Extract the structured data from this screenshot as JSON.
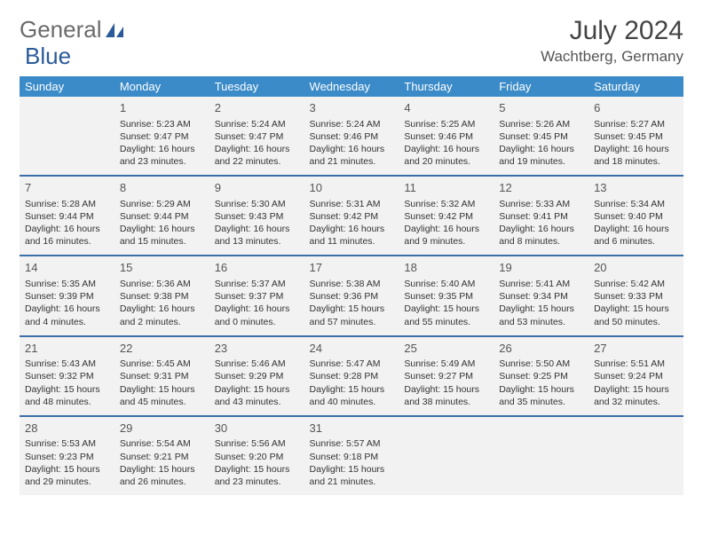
{
  "logo": {
    "word1": "General",
    "word2": "Blue",
    "color1": "#6b6b6b",
    "color2": "#2a5a9a",
    "icon_color": "#2a5a9a"
  },
  "title": "July 2024",
  "location": "Wachtberg, Germany",
  "colors": {
    "header_bg": "#3b8bc8",
    "header_fg": "#ffffff",
    "row_border": "#3b6fa8",
    "cell_bg": "#f2f2f2",
    "text": "#333333"
  },
  "dow": [
    "Sunday",
    "Monday",
    "Tuesday",
    "Wednesday",
    "Thursday",
    "Friday",
    "Saturday"
  ],
  "weeks": [
    [
      null,
      {
        "d": "1",
        "sr": "5:23 AM",
        "ss": "9:47 PM",
        "dl1": "Daylight: 16 hours",
        "dl2": "and 23 minutes."
      },
      {
        "d": "2",
        "sr": "5:24 AM",
        "ss": "9:47 PM",
        "dl1": "Daylight: 16 hours",
        "dl2": "and 22 minutes."
      },
      {
        "d": "3",
        "sr": "5:24 AM",
        "ss": "9:46 PM",
        "dl1": "Daylight: 16 hours",
        "dl2": "and 21 minutes."
      },
      {
        "d": "4",
        "sr": "5:25 AM",
        "ss": "9:46 PM",
        "dl1": "Daylight: 16 hours",
        "dl2": "and 20 minutes."
      },
      {
        "d": "5",
        "sr": "5:26 AM",
        "ss": "9:45 PM",
        "dl1": "Daylight: 16 hours",
        "dl2": "and 19 minutes."
      },
      {
        "d": "6",
        "sr": "5:27 AM",
        "ss": "9:45 PM",
        "dl1": "Daylight: 16 hours",
        "dl2": "and 18 minutes."
      }
    ],
    [
      {
        "d": "7",
        "sr": "5:28 AM",
        "ss": "9:44 PM",
        "dl1": "Daylight: 16 hours",
        "dl2": "and 16 minutes."
      },
      {
        "d": "8",
        "sr": "5:29 AM",
        "ss": "9:44 PM",
        "dl1": "Daylight: 16 hours",
        "dl2": "and 15 minutes."
      },
      {
        "d": "9",
        "sr": "5:30 AM",
        "ss": "9:43 PM",
        "dl1": "Daylight: 16 hours",
        "dl2": "and 13 minutes."
      },
      {
        "d": "10",
        "sr": "5:31 AM",
        "ss": "9:42 PM",
        "dl1": "Daylight: 16 hours",
        "dl2": "and 11 minutes."
      },
      {
        "d": "11",
        "sr": "5:32 AM",
        "ss": "9:42 PM",
        "dl1": "Daylight: 16 hours",
        "dl2": "and 9 minutes."
      },
      {
        "d": "12",
        "sr": "5:33 AM",
        "ss": "9:41 PM",
        "dl1": "Daylight: 16 hours",
        "dl2": "and 8 minutes."
      },
      {
        "d": "13",
        "sr": "5:34 AM",
        "ss": "9:40 PM",
        "dl1": "Daylight: 16 hours",
        "dl2": "and 6 minutes."
      }
    ],
    [
      {
        "d": "14",
        "sr": "5:35 AM",
        "ss": "9:39 PM",
        "dl1": "Daylight: 16 hours",
        "dl2": "and 4 minutes."
      },
      {
        "d": "15",
        "sr": "5:36 AM",
        "ss": "9:38 PM",
        "dl1": "Daylight: 16 hours",
        "dl2": "and 2 minutes."
      },
      {
        "d": "16",
        "sr": "5:37 AM",
        "ss": "9:37 PM",
        "dl1": "Daylight: 16 hours",
        "dl2": "and 0 minutes."
      },
      {
        "d": "17",
        "sr": "5:38 AM",
        "ss": "9:36 PM",
        "dl1": "Daylight: 15 hours",
        "dl2": "and 57 minutes."
      },
      {
        "d": "18",
        "sr": "5:40 AM",
        "ss": "9:35 PM",
        "dl1": "Daylight: 15 hours",
        "dl2": "and 55 minutes."
      },
      {
        "d": "19",
        "sr": "5:41 AM",
        "ss": "9:34 PM",
        "dl1": "Daylight: 15 hours",
        "dl2": "and 53 minutes."
      },
      {
        "d": "20",
        "sr": "5:42 AM",
        "ss": "9:33 PM",
        "dl1": "Daylight: 15 hours",
        "dl2": "and 50 minutes."
      }
    ],
    [
      {
        "d": "21",
        "sr": "5:43 AM",
        "ss": "9:32 PM",
        "dl1": "Daylight: 15 hours",
        "dl2": "and 48 minutes."
      },
      {
        "d": "22",
        "sr": "5:45 AM",
        "ss": "9:31 PM",
        "dl1": "Daylight: 15 hours",
        "dl2": "and 45 minutes."
      },
      {
        "d": "23",
        "sr": "5:46 AM",
        "ss": "9:29 PM",
        "dl1": "Daylight: 15 hours",
        "dl2": "and 43 minutes."
      },
      {
        "d": "24",
        "sr": "5:47 AM",
        "ss": "9:28 PM",
        "dl1": "Daylight: 15 hours",
        "dl2": "and 40 minutes."
      },
      {
        "d": "25",
        "sr": "5:49 AM",
        "ss": "9:27 PM",
        "dl1": "Daylight: 15 hours",
        "dl2": "and 38 minutes."
      },
      {
        "d": "26",
        "sr": "5:50 AM",
        "ss": "9:25 PM",
        "dl1": "Daylight: 15 hours",
        "dl2": "and 35 minutes."
      },
      {
        "d": "27",
        "sr": "5:51 AM",
        "ss": "9:24 PM",
        "dl1": "Daylight: 15 hours",
        "dl2": "and 32 minutes."
      }
    ],
    [
      {
        "d": "28",
        "sr": "5:53 AM",
        "ss": "9:23 PM",
        "dl1": "Daylight: 15 hours",
        "dl2": "and 29 minutes."
      },
      {
        "d": "29",
        "sr": "5:54 AM",
        "ss": "9:21 PM",
        "dl1": "Daylight: 15 hours",
        "dl2": "and 26 minutes."
      },
      {
        "d": "30",
        "sr": "5:56 AM",
        "ss": "9:20 PM",
        "dl1": "Daylight: 15 hours",
        "dl2": "and 23 minutes."
      },
      {
        "d": "31",
        "sr": "5:57 AM",
        "ss": "9:18 PM",
        "dl1": "Daylight: 15 hours",
        "dl2": "and 21 minutes."
      },
      null,
      null,
      null
    ]
  ],
  "labels": {
    "sunrise": "Sunrise:",
    "sunset": "Sunset:"
  }
}
